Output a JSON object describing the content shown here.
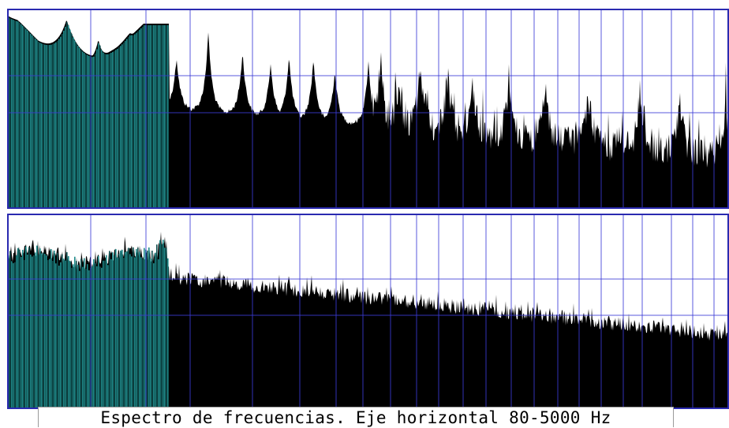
{
  "caption": "Espectro de frecuencias. Eje horizontal 80-5000 Hz",
  "colors": {
    "grid": "#3b3bd6",
    "frame": "#2a2ab0",
    "fill": "#000000",
    "low_band": "#1f8a8a",
    "low_band_dark": "#0f4f4f",
    "background": "#ffffff"
  },
  "chart_data": [
    {
      "type": "area",
      "title": "",
      "xlabel": "Espectro de frecuencias. Eje horizontal 80-5000 Hz",
      "xlim": [
        80,
        5000
      ],
      "grid": true,
      "legend": "none",
      "peaks_hz": [
        80,
        272,
        376,
        480,
        576,
        632,
        736,
        848,
        940,
        1000,
        1080,
        1150,
        1260,
        1300,
        1360,
        1430,
        1520,
        1600,
        1720,
        1840,
        1980,
        2150,
        2280,
        2430
      ]
    },
    {
      "type": "area",
      "title": "",
      "xlim": [
        80,
        5000
      ],
      "grid": true,
      "legend": "none"
    }
  ]
}
